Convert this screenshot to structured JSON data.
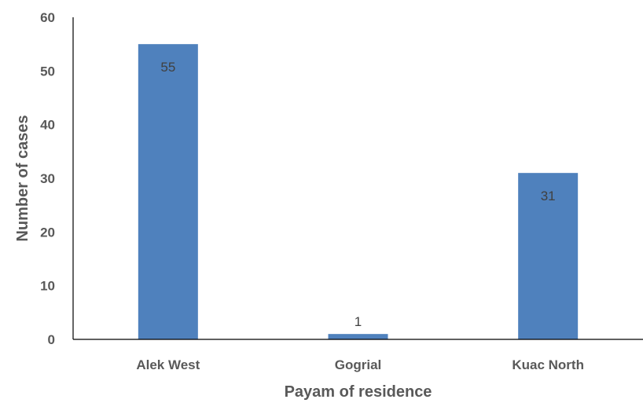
{
  "chart_data": {
    "type": "bar",
    "categories": [
      "Alek West",
      "Gogrial",
      "Kuac North"
    ],
    "values": [
      55,
      1,
      31
    ],
    "data_labels": [
      "55",
      "1",
      "31"
    ],
    "xlabel": "Payam of residence",
    "ylabel": "Number of cases",
    "ylim": [
      0,
      60
    ],
    "yticks": [
      0,
      10,
      20,
      30,
      40,
      50,
      60
    ],
    "grid": false,
    "legend": "none",
    "bar_color": "#4f81bd",
    "axis_color": "#000000",
    "text_color": "#595959"
  }
}
